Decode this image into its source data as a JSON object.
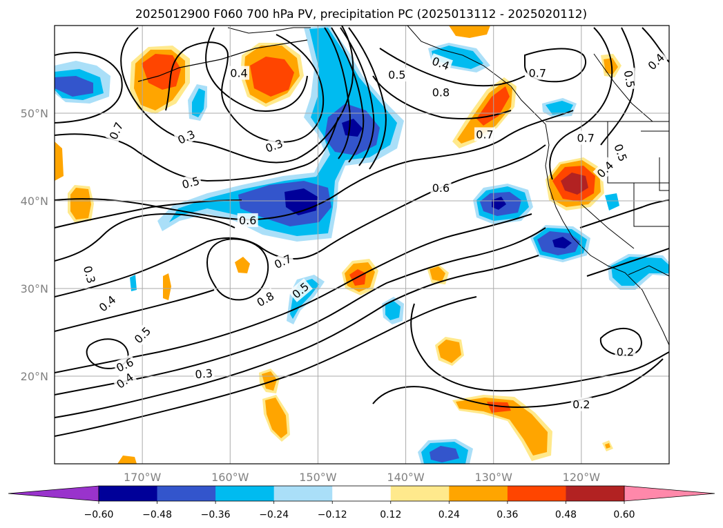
{
  "chart_data": {
    "type": "contour-map",
    "title": "2025012900 F060 700 hPa PV, precipitation PC (2025013112 - 2025020112)",
    "map_extent": {
      "lon": [
        -180,
        -110
      ],
      "lat": [
        10,
        60
      ]
    },
    "grid": true,
    "lon_ticks": [
      {
        "lon": -170,
        "label": "170°W"
      },
      {
        "lon": -160,
        "label": "160°W"
      },
      {
        "lon": -150,
        "label": "150°W"
      },
      {
        "lon": -140,
        "label": "140°W"
      },
      {
        "lon": -130,
        "label": "130°W"
      },
      {
        "lon": -120,
        "label": "120°W"
      }
    ],
    "lat_ticks": [
      {
        "lat": 50,
        "label": "50°N"
      },
      {
        "lat": 40,
        "label": "40°N"
      },
      {
        "lat": 30,
        "label": "30°N"
      },
      {
        "lat": 20,
        "label": "20°N"
      }
    ],
    "colorbar": {
      "orientation": "horizontal",
      "extend": "both",
      "levels": [
        -0.6,
        -0.48,
        -0.36,
        -0.24,
        -0.12,
        0.12,
        0.24,
        0.36,
        0.48,
        0.6
      ],
      "tick_labels": [
        "−0.60",
        "−0.48",
        "−0.36",
        "−0.24",
        "−0.12",
        "0.12",
        "0.24",
        "0.36",
        "0.48",
        "0.60"
      ],
      "under_color": "#9933cc",
      "over_color": "#ff88aa",
      "colors": [
        "#000099",
        "#3355cc",
        "#00bbf0",
        "#aadff8",
        "#ffffff",
        "#ffe98c",
        "#ffa500",
        "#ff4500",
        "#b22222"
      ]
    },
    "pv_contour_labels": [
      {
        "text": "0.7",
        "lon": -173,
        "lat": 48.0,
        "rot": 65
      },
      {
        "text": "0.3",
        "lon": -165,
        "lat": 47.3,
        "rot": 25
      },
      {
        "text": "0.4",
        "lon": -159,
        "lat": 54.6,
        "rot": 0
      },
      {
        "text": "0.3",
        "lon": -155,
        "lat": 46.3,
        "rot": 20
      },
      {
        "text": "0.5",
        "lon": -164.5,
        "lat": 42.1,
        "rot": 15
      },
      {
        "text": "0.6",
        "lon": -158,
        "lat": 37.8,
        "rot": 0
      },
      {
        "text": "0.5",
        "lon": -141,
        "lat": 54.4,
        "rot": 0
      },
      {
        "text": "0.4",
        "lon": -136,
        "lat": 55.7,
        "rot": -20
      },
      {
        "text": "0.8",
        "lon": -136,
        "lat": 52.4,
        "rot": 0
      },
      {
        "text": "0.7",
        "lon": -131,
        "lat": 47.6,
        "rot": 0
      },
      {
        "text": "0.6",
        "lon": -136,
        "lat": 41.5,
        "rot": 0
      },
      {
        "text": "0.7",
        "lon": -125,
        "lat": 54.6,
        "rot": 0
      },
      {
        "text": "0.7",
        "lon": -119.5,
        "lat": 47.2,
        "rot": 0
      },
      {
        "text": "0.4",
        "lon": -111.5,
        "lat": 55.9,
        "rot": 45
      },
      {
        "text": "0.5",
        "lon": -114.5,
        "lat": 53.9,
        "rot": -80
      },
      {
        "text": "0.5",
        "lon": -115.5,
        "lat": 45.5,
        "rot": -70
      },
      {
        "text": "0.4",
        "lon": -117.3,
        "lat": 43.6,
        "rot": 45
      },
      {
        "text": "0.3",
        "lon": -176,
        "lat": 31.6,
        "rot": -75
      },
      {
        "text": "0.4",
        "lon": -174,
        "lat": 28.3,
        "rot": 40
      },
      {
        "text": "0.5",
        "lon": -170,
        "lat": 24.7,
        "rot": 45
      },
      {
        "text": "0.6",
        "lon": -172,
        "lat": 21.3,
        "rot": 25
      },
      {
        "text": "0.4",
        "lon": -172,
        "lat": 19.5,
        "rot": 35
      },
      {
        "text": "0.8",
        "lon": -156,
        "lat": 28.8,
        "rot": 30
      },
      {
        "text": "0.7",
        "lon": -154,
        "lat": 33.1,
        "rot": 25
      },
      {
        "text": "0.5",
        "lon": -152,
        "lat": 29.8,
        "rot": 40
      },
      {
        "text": "0.3",
        "lon": -163,
        "lat": 20.3,
        "rot": 5
      },
      {
        "text": "0.2",
        "lon": -120,
        "lat": 16.8,
        "rot": 0
      },
      {
        "text": "0.2",
        "lon": -115,
        "lat": 22.8,
        "rot": 0
      }
    ]
  }
}
